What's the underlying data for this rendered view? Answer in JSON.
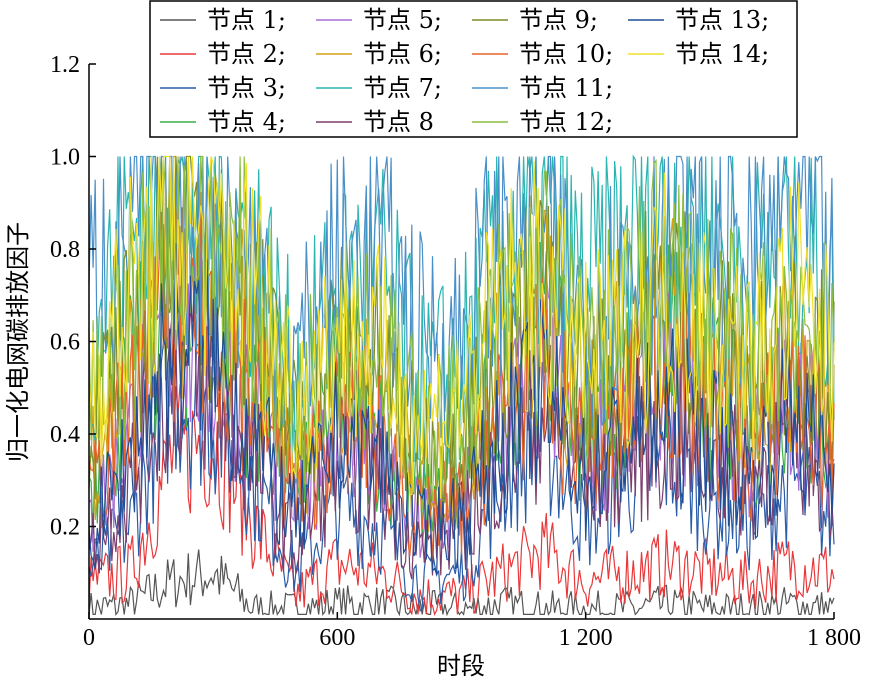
{
  "chart_data": {
    "type": "line",
    "xlabel": "时段",
    "ylabel": "归一化电网碳排放因子",
    "xlim": [
      0,
      1800
    ],
    "ylim": [
      0,
      1.2
    ],
    "x_ticks": [
      0,
      600,
      1200,
      1800
    ],
    "x_tick_labels": [
      "0",
      "600",
      "1 200",
      "1 800"
    ],
    "y_ticks": [
      0.2,
      0.4,
      0.6,
      0.8,
      1.0,
      1.2
    ],
    "y_tick_labels": [
      "0.2",
      "0.4",
      "0.6",
      "0.8",
      "1.0",
      "1.2"
    ],
    "grid": false,
    "legend_position": "top",
    "series": [
      {
        "name": "节点 1;",
        "color": "#555555",
        "x": [
          0,
          100,
          200,
          300,
          400,
          500,
          600,
          700,
          800,
          900,
          1000,
          1100,
          1200,
          1300,
          1400,
          1500,
          1600,
          1700,
          1800
        ],
        "values": [
          0.02,
          0.03,
          0.08,
          0.1,
          0.02,
          0.02,
          0.03,
          0.03,
          0.02,
          0.02,
          0.03,
          0.02,
          0.02,
          0.02,
          0.03,
          0.02,
          0.02,
          0.03,
          0.02
        ]
      },
      {
        "name": "节点 2;",
        "color": "#e8383a",
        "x": [
          0,
          100,
          200,
          300,
          400,
          500,
          600,
          700,
          800,
          900,
          1000,
          1100,
          1200,
          1300,
          1400,
          1500,
          1600,
          1700,
          1800
        ],
        "values": [
          0.08,
          0.1,
          0.35,
          0.4,
          0.2,
          0.05,
          0.12,
          0.1,
          0.05,
          0.05,
          0.1,
          0.15,
          0.08,
          0.1,
          0.12,
          0.1,
          0.08,
          0.12,
          0.1
        ]
      },
      {
        "name": "节点 3;",
        "color": "#2b5ca8",
        "x": [
          0,
          100,
          200,
          300,
          400,
          500,
          600,
          700,
          800,
          900,
          1000,
          1100,
          1200,
          1300,
          1400,
          1500,
          1600,
          1700,
          1800
        ],
        "values": [
          0.1,
          0.2,
          0.5,
          0.45,
          0.3,
          0.1,
          0.25,
          0.2,
          0.08,
          0.1,
          0.3,
          0.4,
          0.2,
          0.3,
          0.35,
          0.25,
          0.2,
          0.3,
          0.2
        ]
      },
      {
        "name": "节点 4;",
        "color": "#3fae49",
        "x": [
          0,
          100,
          200,
          300,
          400,
          500,
          600,
          700,
          800,
          900,
          1000,
          1100,
          1200,
          1300,
          1400,
          1500,
          1600,
          1700,
          1800
        ],
        "values": [
          0.3,
          0.5,
          0.7,
          0.6,
          0.5,
          0.3,
          0.5,
          0.4,
          0.25,
          0.3,
          0.5,
          0.6,
          0.4,
          0.5,
          0.6,
          0.5,
          0.4,
          0.55,
          0.4
        ]
      },
      {
        "name": "节点 5;",
        "color": "#a66ed6",
        "x": [
          0,
          100,
          200,
          300,
          400,
          500,
          600,
          700,
          800,
          900,
          1000,
          1100,
          1200,
          1300,
          1400,
          1500,
          1600,
          1700,
          1800
        ],
        "values": [
          0.2,
          0.4,
          0.65,
          0.55,
          0.45,
          0.25,
          0.45,
          0.35,
          0.2,
          0.25,
          0.45,
          0.55,
          0.35,
          0.45,
          0.5,
          0.45,
          0.35,
          0.5,
          0.35
        ]
      },
      {
        "name": "节点 6;",
        "color": "#d4a017",
        "x": [
          0,
          100,
          200,
          300,
          400,
          500,
          600,
          700,
          800,
          900,
          1000,
          1100,
          1200,
          1300,
          1400,
          1500,
          1600,
          1700,
          1800
        ],
        "values": [
          0.35,
          0.55,
          0.8,
          0.7,
          0.6,
          0.35,
          0.55,
          0.5,
          0.3,
          0.35,
          0.55,
          0.65,
          0.45,
          0.55,
          0.65,
          0.55,
          0.45,
          0.6,
          0.45
        ]
      },
      {
        "name": "节点 7;",
        "color": "#2ab5b0",
        "x": [
          0,
          100,
          200,
          300,
          400,
          500,
          600,
          700,
          800,
          900,
          1000,
          1100,
          1200,
          1300,
          1400,
          1500,
          1600,
          1700,
          1800
        ],
        "values": [
          0.6,
          0.85,
          0.95,
          0.9,
          0.8,
          0.5,
          0.7,
          0.75,
          0.5,
          0.55,
          0.8,
          0.85,
          0.7,
          0.8,
          0.9,
          0.85,
          0.7,
          0.9,
          0.65
        ]
      },
      {
        "name": "节点 8",
        "color": "#7b3f6e",
        "x": [
          0,
          100,
          200,
          300,
          400,
          500,
          600,
          700,
          800,
          900,
          1000,
          1100,
          1200,
          1300,
          1400,
          1500,
          1600,
          1700,
          1800
        ],
        "values": [
          0.15,
          0.3,
          0.55,
          0.5,
          0.35,
          0.15,
          0.35,
          0.3,
          0.15,
          0.2,
          0.35,
          0.45,
          0.3,
          0.35,
          0.4,
          0.35,
          0.3,
          0.4,
          0.3
        ]
      },
      {
        "name": "节点 9;",
        "color": "#7d8c2a",
        "x": [
          0,
          100,
          200,
          300,
          400,
          500,
          600,
          700,
          800,
          900,
          1000,
          1100,
          1200,
          1300,
          1400,
          1500,
          1600,
          1700,
          1800
        ],
        "values": [
          0.4,
          0.6,
          0.85,
          0.75,
          0.65,
          0.4,
          0.6,
          0.55,
          0.35,
          0.4,
          0.6,
          0.7,
          0.5,
          0.6,
          0.7,
          0.6,
          0.5,
          0.65,
          0.5
        ]
      },
      {
        "name": "节点 10;",
        "color": "#e8622a",
        "x": [
          0,
          100,
          200,
          300,
          400,
          500,
          600,
          700,
          800,
          900,
          1000,
          1100,
          1200,
          1300,
          1400,
          1500,
          1600,
          1700,
          1800
        ],
        "values": [
          0.25,
          0.45,
          0.7,
          0.65,
          0.5,
          0.25,
          0.45,
          0.4,
          0.2,
          0.25,
          0.45,
          0.55,
          0.35,
          0.45,
          0.55,
          0.45,
          0.35,
          0.5,
          0.35
        ]
      },
      {
        "name": "节点 11;",
        "color": "#4a90c8",
        "x": [
          0,
          100,
          200,
          300,
          400,
          500,
          600,
          700,
          800,
          900,
          1000,
          1100,
          1200,
          1300,
          1400,
          1500,
          1600,
          1700,
          1800
        ],
        "values": [
          0.7,
          0.9,
          0.9,
          0.85,
          0.75,
          0.55,
          0.75,
          0.8,
          0.6,
          0.6,
          0.85,
          0.8,
          0.65,
          0.75,
          0.85,
          0.8,
          0.75,
          0.9,
          0.7
        ]
      },
      {
        "name": "节点 12;",
        "color": "#8cbf3f",
        "x": [
          0,
          100,
          200,
          300,
          400,
          500,
          600,
          700,
          800,
          900,
          1000,
          1100,
          1200,
          1300,
          1400,
          1500,
          1600,
          1700,
          1800
        ],
        "values": [
          0.45,
          0.65,
          0.9,
          0.8,
          0.7,
          0.45,
          0.65,
          0.6,
          0.4,
          0.45,
          0.65,
          0.75,
          0.55,
          0.65,
          0.75,
          0.65,
          0.55,
          0.7,
          0.55
        ]
      },
      {
        "name": "节点 13;",
        "color": "#1f4e96",
        "x": [
          0,
          100,
          200,
          300,
          400,
          500,
          600,
          700,
          800,
          900,
          1000,
          1100,
          1200,
          1300,
          1400,
          1500,
          1600,
          1700,
          1800
        ],
        "values": [
          0.18,
          0.35,
          0.6,
          0.55,
          0.4,
          0.2,
          0.4,
          0.35,
          0.18,
          0.22,
          0.4,
          0.5,
          0.3,
          0.4,
          0.45,
          0.4,
          0.3,
          0.45,
          0.3
        ]
      },
      {
        "name": "节点 14;",
        "color": "#f0e02a",
        "x": [
          0,
          100,
          200,
          300,
          400,
          500,
          600,
          700,
          800,
          900,
          1000,
          1100,
          1200,
          1300,
          1400,
          1500,
          1600,
          1700,
          1800
        ],
        "values": [
          0.5,
          0.7,
          0.88,
          0.8,
          0.72,
          0.48,
          0.62,
          0.58,
          0.42,
          0.48,
          0.68,
          0.72,
          0.55,
          0.62,
          0.72,
          0.62,
          0.55,
          0.7,
          0.55
        ]
      }
    ]
  }
}
